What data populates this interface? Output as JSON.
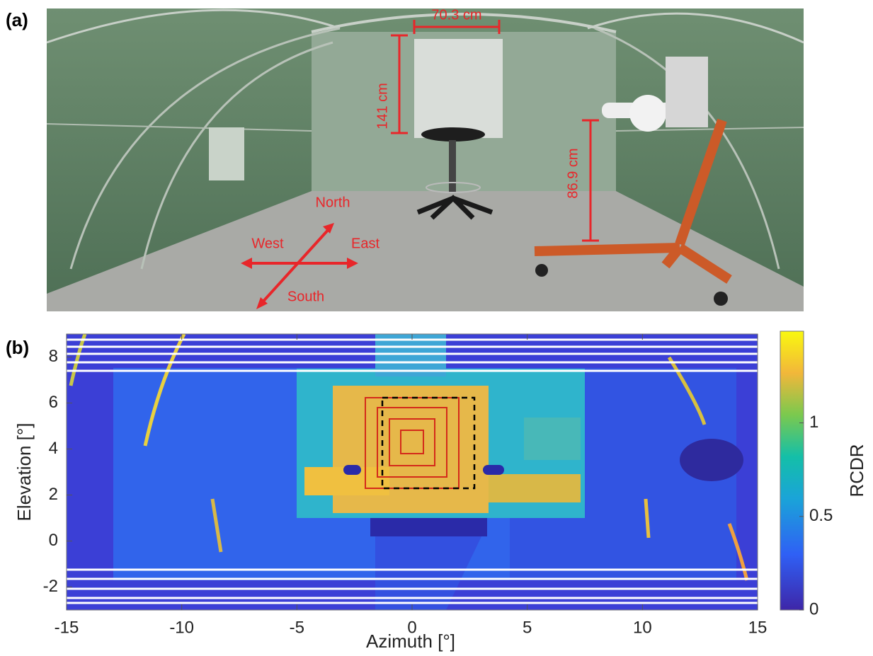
{
  "panel_a": {
    "label": "(a)",
    "measurements": {
      "panel_width": "70.3 cm",
      "panel_height": "141 cm",
      "mount_height": "86.9 cm"
    },
    "directions": {
      "north": "North",
      "west": "West",
      "east": "East",
      "south": "South"
    }
  },
  "chart_data": {
    "type": "heatmap",
    "label": "(b)",
    "xlabel": "Azimuth [°]",
    "ylabel": "Elevation [°]",
    "xlim": [
      -15,
      15
    ],
    "xticks": [
      -15,
      -10,
      -5,
      0,
      5,
      10,
      15
    ],
    "ylim": [
      -3,
      9
    ],
    "yticks": [
      -2,
      0,
      2,
      4,
      6,
      8
    ],
    "colorbar": {
      "label": "RCDR",
      "lim": [
        0,
        1.49
      ],
      "ticks": [
        0,
        0.5,
        1
      ]
    }
  }
}
